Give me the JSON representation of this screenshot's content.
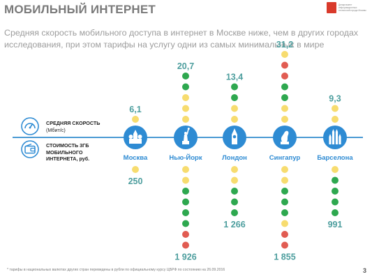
{
  "header": {
    "title": "МОБИЛЬНЫЙ ИНТЕРНЕТ",
    "subtitle_line1": "Средняя скорость мобильного доступа в интернет в Москве ниже, чем в других городах",
    "subtitle_line2": "исследования, при этом тарифы на услугу одни из самых минимальных в мире",
    "logo_text": "Департамент информационных технологий города Москвы"
  },
  "legend": {
    "speed_label_line1": "СРЕДНЯЯ СКОРОСТЬ",
    "speed_label_line2": "(Мбит/с)",
    "speed_icon": "speedometer-icon",
    "cost_label_line1": "СТОИМОСТЬ 3ГБ",
    "cost_label_line2": "МОБИЛЬНОГО",
    "cost_label_line3": "ИНТЕРНЕТА, руб.",
    "cost_icon": "wallet-icon"
  },
  "colors": {
    "accent": "#2e8bd3",
    "axis": "#4a9ad4",
    "value_text": "#4d9e9e",
    "dot_red": "#e15c52",
    "dot_green": "#2ea84f",
    "dot_yellow": "#f7dc6f"
  },
  "chart_data": {
    "type": "table",
    "categories": [
      "Москва",
      "Нью-Йорк",
      "Лондон",
      "Сингапур",
      "Барселона"
    ],
    "landmark_icons": [
      "kremlin-icon",
      "statue-of-liberty-icon",
      "big-ben-icon",
      "merlion-icon",
      "sagrada-familia-icon"
    ],
    "series": [
      {
        "name": "СРЕДНЯЯ СКОРОСТЬ (Мбит/с)",
        "values": [
          6.1,
          20.7,
          13.4,
          31.2,
          9.3
        ],
        "labels": [
          "6,1",
          "20,7",
          "13,4",
          "31,2",
          "9,3"
        ],
        "dots": [
          [
            "yellow"
          ],
          [
            "yellow",
            "yellow",
            "yellow",
            "green",
            "green"
          ],
          [
            "yellow",
            "yellow",
            "green",
            "green"
          ],
          [
            "yellow",
            "yellow",
            "green",
            "green",
            "red",
            "red",
            "yellow"
          ],
          [
            "yellow",
            "yellow"
          ]
        ]
      },
      {
        "name": "СТОИМОСТЬ 3ГБ МОБИЛЬНОГО ИНТЕРНЕТА, руб.",
        "values": [
          250,
          1926,
          1266,
          1855,
          991
        ],
        "labels": [
          "250",
          "1 926",
          "1 266",
          "1 855",
          "991"
        ],
        "dots": [
          [
            "yellow"
          ],
          [
            "yellow",
            "yellow",
            "green",
            "green",
            "green",
            "green",
            "red",
            "red"
          ],
          [
            "yellow",
            "yellow",
            "green",
            "green",
            "green"
          ],
          [
            "yellow",
            "yellow",
            "green",
            "green",
            "green",
            "yellow",
            "red",
            "red"
          ],
          [
            "yellow",
            "green",
            "green",
            "green",
            "green"
          ]
        ]
      }
    ]
  },
  "footer": {
    "footnote": "* тарифы в национальных валютах других стран переведены в рубли по официальному курсу ЦБРФ по состоянию на 26.09.2016",
    "page_number": "3"
  }
}
